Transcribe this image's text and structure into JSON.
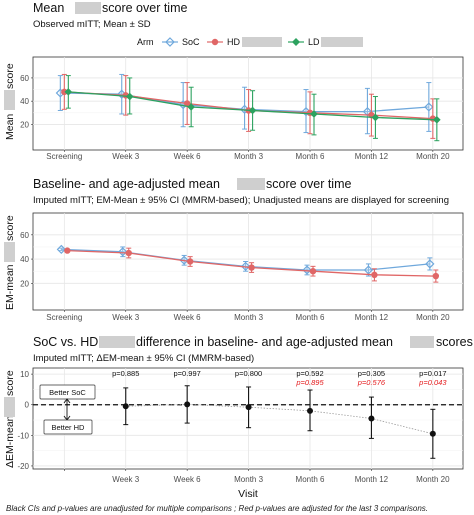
{
  "figure": {
    "footnote": "Black CIs and p-values are unadjusted for multiple comparisons ; Red p-values are adjusted for the last 3 comparisons."
  },
  "colors": {
    "SoC": "#6fa8dc",
    "HD": "#e06666",
    "LD": "#2ca25f",
    "diff": "#111111",
    "adjusted_p": "#e41a1c"
  },
  "chart_data": [
    {
      "type": "line",
      "title": "Mean ",
      "title_suffix": "score over time",
      "subtitle": "Observed mITT; Mean ± SD",
      "ylabel": "Mean ",
      "ylabel_suffix": "score",
      "xlabel": "",
      "ylim": [
        -2,
        78
      ],
      "yticks": [
        20,
        40,
        60
      ],
      "grid": true,
      "legend": {
        "title": "Arm",
        "position": "top",
        "entries": [
          "SoC",
          "HD",
          "LD"
        ]
      },
      "categories": [
        "Screening",
        "Week 3",
        "Week 6",
        "Month 3",
        "Month 6",
        "Month 12",
        "Month 20"
      ],
      "series": [
        {
          "name": "SoC",
          "marker": "diamond-open",
          "values": [
            47,
            46,
            37,
            33,
            31,
            31,
            35
          ],
          "lower": [
            32,
            29,
            18,
            16,
            13,
            12,
            14
          ],
          "upper": [
            62,
            63,
            56,
            52,
            50,
            51,
            56
          ]
        },
        {
          "name": "HD",
          "marker": "circle",
          "values": [
            48,
            45,
            38,
            32,
            30,
            28,
            25
          ],
          "lower": [
            33,
            28,
            20,
            14,
            12,
            10,
            8
          ],
          "upper": [
            63,
            62,
            56,
            50,
            48,
            46,
            42
          ]
        },
        {
          "name": "LD",
          "marker": "diamond",
          "values": [
            48,
            44,
            35,
            32,
            29,
            26,
            24
          ],
          "lower": [
            34,
            29,
            18,
            15,
            11,
            8,
            6
          ],
          "upper": [
            62,
            60,
            52,
            49,
            46,
            44,
            42
          ]
        }
      ]
    },
    {
      "type": "line",
      "title": "Baseline- and age-adjusted mean ",
      "title_suffix": "score over time",
      "subtitle": "Imputed mITT; EM-Mean ± 95% CI (MMRM-based); Unadjusted means are displayed for screening",
      "ylabel": "EM-mean ",
      "ylabel_suffix": "score",
      "xlabel": "",
      "ylim": [
        -2,
        78
      ],
      "yticks": [
        20,
        40,
        60
      ],
      "grid": true,
      "categories": [
        "Screening",
        "Week 3",
        "Week 6",
        "Month 3",
        "Month 6",
        "Month 12",
        "Month 20"
      ],
      "series": [
        {
          "name": "SoC",
          "marker": "diamond-open",
          "values": [
            48,
            46,
            39,
            34,
            31,
            31,
            36
          ],
          "lower": [
            47,
            42,
            35,
            30,
            27,
            26,
            31
          ],
          "upper": [
            49,
            50,
            43,
            38,
            35,
            36,
            41
          ]
        },
        {
          "name": "HD",
          "marker": "circle",
          "values": [
            47,
            45,
            38,
            33,
            30,
            27,
            26
          ],
          "lower": [
            46,
            41,
            34,
            29,
            26,
            22,
            21
          ],
          "upper": [
            48,
            49,
            42,
            37,
            34,
            32,
            31
          ]
        }
      ]
    },
    {
      "type": "scatter",
      "title": "SoC vs. HD ",
      "title_suffix": "difference in baseline- and age-adjusted mean ",
      "title_end": "scores",
      "subtitle": "Imputed mITT; ΔEM-mean ± 95% CI (MMRM-based)",
      "ylabel": "ΔEM-mean ",
      "ylabel_suffix": "score",
      "xlabel": "Visit",
      "ylim": [
        -21,
        12
      ],
      "yticks": [
        -20,
        -10,
        0,
        10
      ],
      "grid": true,
      "reference_line": 0,
      "categories": [
        "",
        "Week 3",
        "Week 6",
        "Month 3",
        "Month 6",
        "Month 12",
        "Month 20"
      ],
      "values": [
        null,
        -0.5,
        0.1,
        -0.8,
        -2.0,
        -4.5,
        -9.5
      ],
      "lower": [
        null,
        -6.5,
        -6.0,
        -7.5,
        -8.5,
        -11.0,
        -17.5
      ],
      "upper": [
        null,
        5.5,
        6.2,
        5.8,
        4.8,
        2.5,
        -1.5
      ],
      "p_values": [
        "",
        "p=0.885",
        "p=0.997",
        "p=0.800",
        "p=0.592",
        "p=0.305",
        "p=0.017"
      ],
      "p_values_adjusted": [
        "",
        "",
        "",
        "",
        "p=0.895",
        "p=0.576",
        "p=0.043"
      ],
      "annotations": {
        "better_soc": "Better SoC",
        "better_hd": "Better HD"
      }
    }
  ]
}
